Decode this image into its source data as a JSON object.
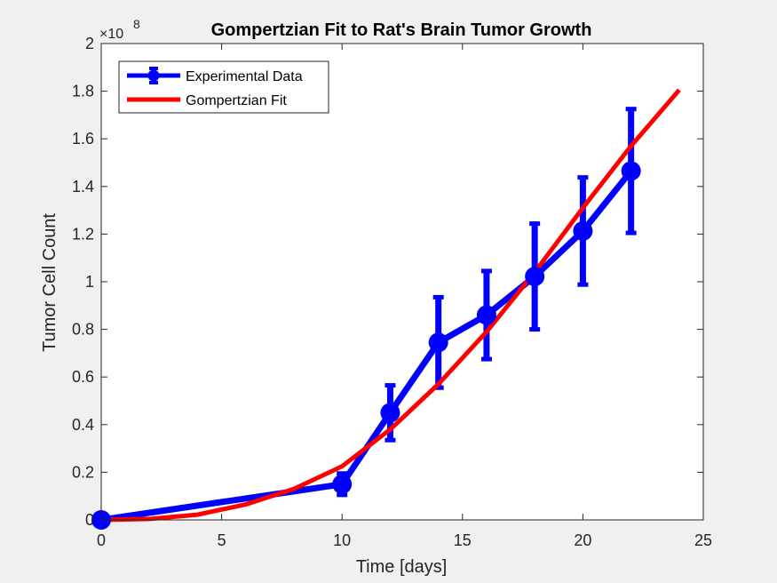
{
  "chart_data": {
    "type": "line",
    "title": "Gompertzian Fit to Rat's Brain Tumor Growth",
    "xlabel": "Time [days]",
    "ylabel": "Tumor Cell Count",
    "y_exponent_label": "×10",
    "y_exponent_power": "8",
    "xlim": [
      0,
      25
    ],
    "ylim": [
      0,
      2
    ],
    "xticks": [
      0,
      5,
      10,
      15,
      20,
      25
    ],
    "yticks": [
      0,
      0.2,
      0.4,
      0.6,
      0.8,
      1,
      1.2,
      1.4,
      1.6,
      1.8,
      2
    ],
    "xtick_labels": [
      "0",
      "5",
      "10",
      "15",
      "20",
      "25"
    ],
    "ytick_labels": [
      "0",
      "0.2",
      "0.4",
      "0.6",
      "0.8",
      "1",
      "1.2",
      "1.4",
      "1.6",
      "1.8",
      "2"
    ],
    "grid": false,
    "legend_position": "top-left",
    "series": [
      {
        "name": "Experimental Data",
        "kind": "errorbar",
        "color": "#0000ff",
        "x": [
          0,
          10,
          12,
          14,
          16,
          18,
          20,
          22
        ],
        "y": [
          0,
          0.15,
          0.45,
          0.745,
          0.86,
          1.022,
          1.213,
          1.465
        ],
        "err": [
          0,
          0.045,
          0.115,
          0.19,
          0.185,
          0.222,
          0.225,
          0.26
        ]
      },
      {
        "name": "Gompertzian Fit",
        "kind": "line",
        "color": "#ff0000",
        "x": [
          0,
          2,
          4,
          6,
          8,
          10,
          12,
          14,
          16,
          18,
          20,
          22,
          24
        ],
        "y": [
          0,
          0.004,
          0.022,
          0.065,
          0.13,
          0.225,
          0.38,
          0.57,
          0.79,
          1.04,
          1.31,
          1.57,
          1.805
        ]
      }
    ]
  }
}
